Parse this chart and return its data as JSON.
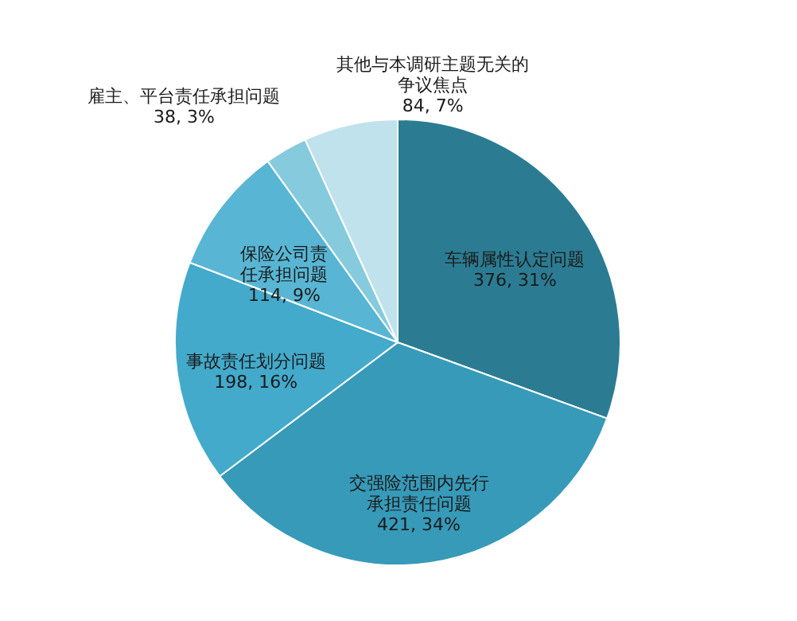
{
  "chart_data": {
    "type": "pie",
    "categories": [
      "车辆属性认定问题",
      "交强险范围内先行承担责任问题",
      "事故责任划分问题",
      "保险公司责任承担问题",
      "雇主、平台责任承担问题",
      "其他与本调研主题无关的争议焦点"
    ],
    "values": [
      376,
      421,
      198,
      114,
      38,
      84
    ],
    "value_labels": [
      "376, 31%",
      "421, 34%",
      "198, 16%",
      "114, 9%",
      "38, 3%",
      "84, 7%"
    ],
    "colors": [
      "#2b7c93",
      "#379ab9",
      "#43aacb",
      "#58b6d4",
      "#86cbdd",
      "#bfe2ec"
    ]
  }
}
